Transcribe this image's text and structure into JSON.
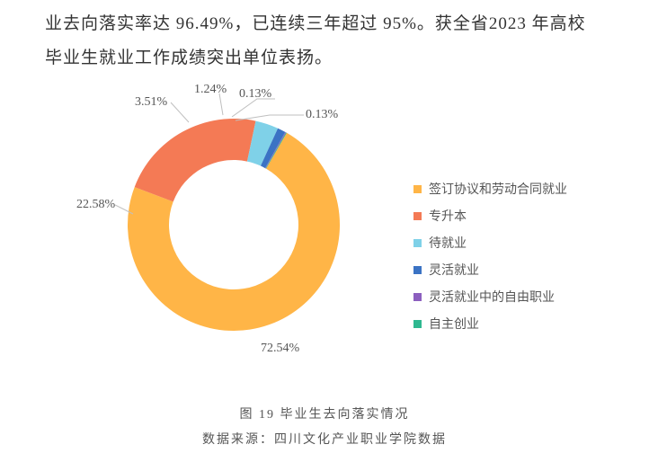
{
  "text": {
    "para": "业去向落实率达 96.49%，已连续三年超过 95%。获全省2023 年高校毕业生就业工作成绩突出单位表扬。",
    "caption_title": "图 19  毕业生去向落实情况",
    "caption_source": "数据来源：四川文化产业职业学院数据"
  },
  "chart": {
    "type": "donut",
    "size": 280,
    "outer_radius": 118,
    "inner_radius": 72,
    "background_color": "#ffffff",
    "start_angle_deg": -60,
    "slices": [
      {
        "label": "签订协议和劳动合同就业",
        "value": 72.54,
        "pct": "72.54%",
        "color": "#ffb547"
      },
      {
        "label": "专升本",
        "value": 22.58,
        "pct": "22.58%",
        "color": "#f47a55"
      },
      {
        "label": "待就业",
        "value": 3.51,
        "pct": "3.51%",
        "color": "#7fd1e8"
      },
      {
        "label": "灵活就业",
        "value": 1.24,
        "pct": "1.24%",
        "color": "#3b73c4"
      },
      {
        "label": "灵活就业中的自由职业",
        "value": 0.13,
        "pct": "0.13%",
        "color": "#8c5fbf"
      },
      {
        "label": "自主创业",
        "value": 0.13,
        "pct": "0.13%",
        "color": "#2fb890"
      }
    ],
    "label_fontsize": 14,
    "label_color": "#555555"
  },
  "legend": {
    "swatch_size": 9,
    "fontsize": 14,
    "color": "#555555"
  }
}
